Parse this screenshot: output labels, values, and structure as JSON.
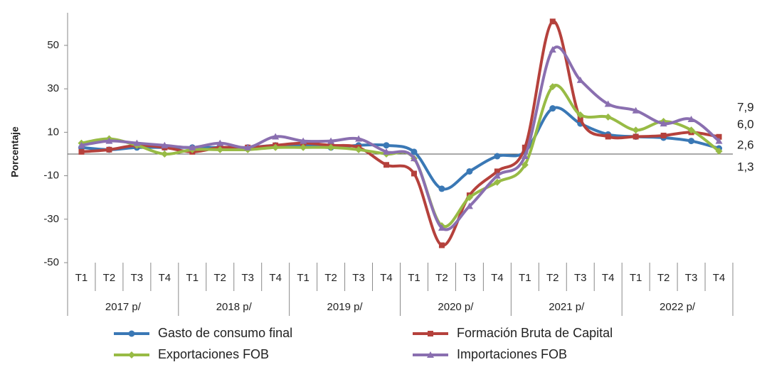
{
  "chart_data": {
    "type": "line",
    "y_label": "Porcentaje",
    "categories": [
      "T1",
      "T2",
      "T3",
      "T4",
      "T1",
      "T2",
      "T3",
      "T4",
      "T1",
      "T2",
      "T3",
      "T4",
      "T1",
      "T2",
      "T3",
      "T4",
      "T1",
      "T2",
      "T3",
      "T4",
      "T1",
      "T2",
      "T3",
      "T4"
    ],
    "groups": [
      "2017 p/",
      "2018 p/",
      "2019 p/",
      "2020 p/",
      "2021 p/",
      "2022 p/"
    ],
    "ylim": [
      -50,
      65
    ],
    "yticks": [
      -50,
      -30,
      -10,
      10,
      30,
      50
    ],
    "series": [
      {
        "name": "Gasto de consumo final",
        "color": "#3a78b5",
        "marker": "circle",
        "values": [
          3,
          2,
          3,
          3,
          3,
          3,
          3,
          4,
          4,
          3,
          4,
          4,
          1,
          -16,
          -8,
          -1,
          1,
          21,
          14,
          9,
          8,
          7.5,
          6,
          2.6
        ],
        "value_labels": [
          null,
          null,
          null,
          null,
          null,
          null,
          null,
          null,
          null,
          null,
          null,
          null,
          null,
          null,
          null,
          null,
          null,
          null,
          null,
          null,
          null,
          null,
          null,
          "2,6"
        ]
      },
      {
        "name": "Formación Bruta de Capital",
        "color": "#b5413c",
        "marker": "square",
        "values": [
          1,
          2,
          4,
          3,
          1,
          3,
          3,
          4,
          5,
          4,
          3,
          -5,
          -9,
          -42,
          -19,
          -8,
          3,
          61,
          16,
          8,
          8,
          8.5,
          10,
          7.9
        ],
        "value_labels": [
          null,
          null,
          null,
          null,
          null,
          null,
          null,
          null,
          null,
          null,
          null,
          null,
          null,
          null,
          null,
          null,
          null,
          null,
          null,
          null,
          null,
          null,
          null,
          "7,9"
        ]
      },
      {
        "name": "Exportaciones FOB",
        "color": "#98bb45",
        "marker": "diamond",
        "values": [
          5,
          7,
          4,
          0,
          2,
          2,
          2,
          3,
          3,
          3,
          2,
          0,
          -2,
          -33,
          -20,
          -13,
          -5,
          31,
          18,
          17,
          11,
          15,
          11,
          1.3
        ],
        "value_labels": [
          null,
          null,
          null,
          null,
          null,
          null,
          null,
          null,
          null,
          null,
          null,
          null,
          null,
          null,
          null,
          null,
          null,
          null,
          null,
          null,
          null,
          null,
          null,
          "1,3"
        ]
      },
      {
        "name": "Importaciones FOB",
        "color": "#8a6fb0",
        "marker": "triangle",
        "values": [
          4,
          6,
          5,
          4,
          3,
          5,
          3,
          8,
          6,
          6,
          7,
          1,
          -2,
          -34,
          -24,
          -10,
          -1,
          48,
          34,
          23,
          20,
          14,
          16,
          6.0
        ],
        "value_labels": [
          null,
          null,
          null,
          null,
          null,
          null,
          null,
          null,
          null,
          null,
          null,
          null,
          null,
          null,
          null,
          null,
          null,
          null,
          null,
          null,
          null,
          null,
          null,
          "6,0"
        ]
      }
    ]
  }
}
